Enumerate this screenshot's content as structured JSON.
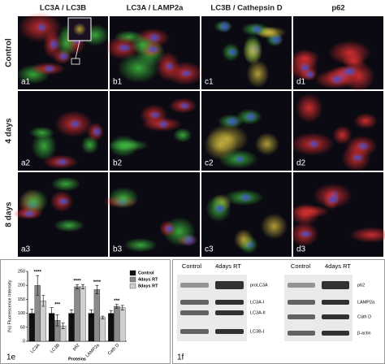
{
  "figure": {
    "column_headers": [
      "LC3A / LC3B",
      "LC3A / LAMP2a",
      "LC3B / Cathepsin D",
      "p62"
    ],
    "row_labels": [
      "Control",
      "4 days",
      "8 days"
    ],
    "panel_labels": [
      [
        "a1",
        "b1",
        "c1",
        "d1"
      ],
      [
        "a2",
        "b2",
        "c2",
        "d2"
      ],
      [
        "a3",
        "b3",
        "c3",
        "d3"
      ]
    ]
  },
  "chart_data": {
    "type": "bar",
    "panel_label": "1e",
    "y_label": "(%) Fluorescence Intensity",
    "x_label": "Proteins",
    "categories": [
      "LC3A",
      "LC3B",
      "p62",
      "LAMP2a",
      "Cath D"
    ],
    "series": [
      {
        "name": "Control",
        "color": "#111111",
        "values": [
          100,
          100,
          100,
          100,
          100
        ],
        "errors": [
          15,
          20,
          12,
          12,
          10
        ]
      },
      {
        "name": "4days RT",
        "color": "#8a8a8a",
        "values": [
          200,
          75,
          195,
          185,
          125
        ],
        "errors": [
          35,
          20,
          8,
          15,
          8
        ]
      },
      {
        "name": "8days RT",
        "color": "#cfcfcf",
        "values": [
          145,
          55,
          195,
          85,
          120
        ],
        "errors": [
          20,
          10,
          8,
          5,
          8
        ]
      }
    ],
    "annotations": [
      "****",
      "***",
      "****",
      "****",
      "***"
    ],
    "ylim": [
      0,
      250
    ],
    "yticks": [
      0,
      50,
      100,
      150,
      200,
      250
    ]
  },
  "blots": {
    "panel_label": "1f",
    "groups": [
      {
        "headers": [
          "Control",
          "4days RT"
        ],
        "labels": [
          "proLC3A",
          "LC3A-I",
          "LC3A-II",
          "LC3B-I"
        ]
      },
      {
        "headers": [
          "Control",
          "4days RT"
        ],
        "labels": [
          "p62",
          "LAMP2a",
          "Cath D",
          "β-actin"
        ]
      }
    ]
  }
}
